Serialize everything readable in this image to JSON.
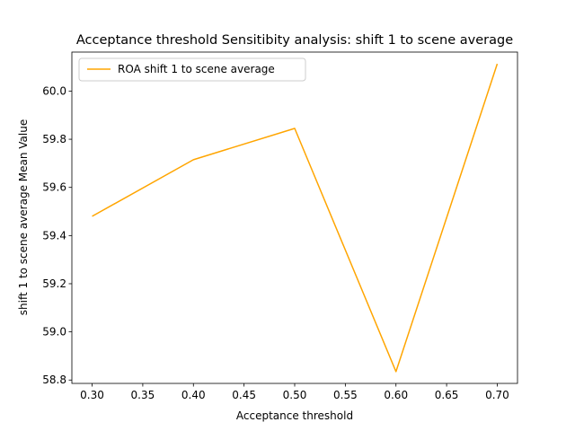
{
  "chart_data": {
    "type": "line",
    "title": "Acceptance threshold Sensitibity analysis: shift 1 to scene average",
    "xlabel": "Acceptance threshold",
    "ylabel": "shift 1 to scene average Mean Value",
    "x": [
      0.3,
      0.4,
      0.5,
      0.6,
      0.7
    ],
    "series": [
      {
        "name": "ROA shift 1 to scene average",
        "color": "#ffa500",
        "values": [
          59.48,
          59.715,
          59.845,
          58.835,
          60.113
        ]
      }
    ],
    "xlim": [
      0.28,
      0.72
    ],
    "ylim": [
      58.786,
      60.162
    ],
    "xticks": [
      "0.30",
      "0.35",
      "0.40",
      "0.45",
      "0.50",
      "0.55",
      "0.60",
      "0.65",
      "0.70"
    ],
    "xtick_values": [
      0.3,
      0.35,
      0.4,
      0.45,
      0.5,
      0.55,
      0.6,
      0.65,
      0.7
    ],
    "yticks": [
      "58.8",
      "59.0",
      "59.2",
      "59.4",
      "59.6",
      "59.8",
      "60.0"
    ],
    "ytick_values": [
      58.8,
      59.0,
      59.2,
      59.4,
      59.6,
      59.8,
      60.0
    ],
    "grid": false,
    "legend_position": "top-left"
  }
}
